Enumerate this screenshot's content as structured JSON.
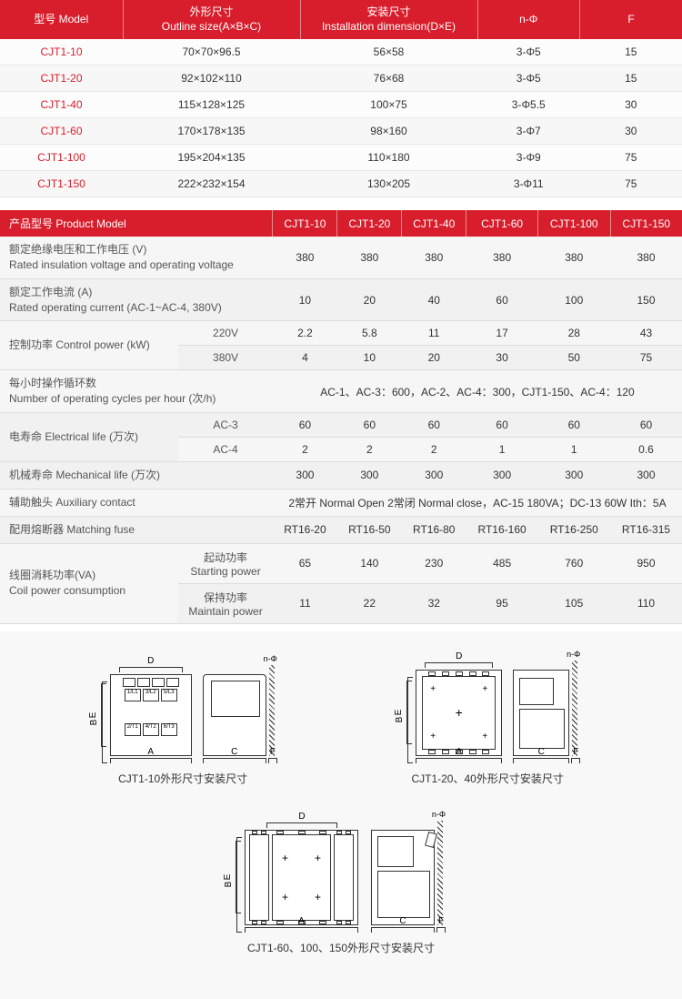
{
  "colors": {
    "header_bg": "#d81e2c",
    "header_text": "#ffffff",
    "row_bg": "#f7f7f7",
    "model_text": "#d81e2c",
    "border": "#e8e8e8"
  },
  "table1": {
    "headers": [
      {
        "cn": "型号",
        "en": "Model"
      },
      {
        "cn": "外形尺寸",
        "en": "Outline size(A×B×C)"
      },
      {
        "cn": "安装尺寸",
        "en": "Installation dimension(D×E)"
      },
      {
        "cn": "n-Φ",
        "en": ""
      },
      {
        "cn": "F",
        "en": ""
      }
    ],
    "rows": [
      [
        "CJT1-10",
        "70×70×96.5",
        "56×58",
        "3-Φ5",
        "15"
      ],
      [
        "CJT1-20",
        "92×102×110",
        "76×68",
        "3-Φ5",
        "15"
      ],
      [
        "CJT1-40",
        "115×128×125",
        "100×75",
        "3-Φ5.5",
        "30"
      ],
      [
        "CJT1-60",
        "170×178×135",
        "98×160",
        "3-Φ7",
        "30"
      ],
      [
        "CJT1-100",
        "195×204×135",
        "110×180",
        "3-Φ9",
        "75"
      ],
      [
        "CJT1-150",
        "222×232×154",
        "130×205",
        "3-Φ11",
        "75"
      ]
    ],
    "col_widths": [
      "18%",
      "26%",
      "26%",
      "15%",
      "15%"
    ]
  },
  "table2": {
    "header_label": "产品型号 Product Model",
    "models": [
      "CJT1-10",
      "CJT1-20",
      "CJT1-40",
      "CJT1-60",
      "CJT1-100",
      "CJT1-150"
    ],
    "rows": [
      {
        "label_cn": "额定绝缘电压和工作电压 (V)",
        "label_en": "Rated insulation voltage and operating voltage",
        "sub": "",
        "vals": [
          "380",
          "380",
          "380",
          "380",
          "380",
          "380"
        ],
        "rowspan": 1
      },
      {
        "label_cn": "额定工作电流 (A)",
        "label_en": "Rated operating current (AC-1~AC-4, 380V)",
        "sub": "",
        "vals": [
          "10",
          "20",
          "40",
          "60",
          "100",
          "150"
        ],
        "rowspan": 1
      },
      {
        "label_cn": "控制功率 Control power (kW)",
        "label_en": "",
        "sub": "220V",
        "vals": [
          "2.2",
          "5.8",
          "11",
          "17",
          "28",
          "43"
        ],
        "rowspan": 2
      },
      {
        "sub": "380V",
        "vals": [
          "4",
          "10",
          "20",
          "30",
          "50",
          "75"
        ]
      },
      {
        "label_cn": "每小时操作循环数",
        "label_en": "Number of operating cycles per hour (次/h)",
        "sub": "",
        "merged": "AC-1、AC-3：600，AC-2、AC-4：300，CJT1-150、AC-4：120",
        "rowspan": 1
      },
      {
        "label_cn": "电寿命 Electrical life (万次)",
        "label_en": "",
        "sub": "AC-3",
        "vals": [
          "60",
          "60",
          "60",
          "60",
          "60",
          "60"
        ],
        "rowspan": 2
      },
      {
        "sub": "AC-4",
        "vals": [
          "2",
          "2",
          "2",
          "1",
          "1",
          "0.6"
        ]
      },
      {
        "label_cn": "机械寿命 Mechanical life (万次)",
        "label_en": "",
        "sub": "",
        "vals": [
          "300",
          "300",
          "300",
          "300",
          "300",
          "300"
        ],
        "rowspan": 1
      },
      {
        "label_cn": "辅助触头 Auxiliary contact",
        "label_en": "",
        "sub": "",
        "merged": "2常开 Normal Open  2常闭 Normal close，AC-15  180VA；DC-13  60W  Ith：5A",
        "rowspan": 1
      },
      {
        "label_cn": "配用熔断器 Matching fuse",
        "label_en": "",
        "sub": "",
        "vals": [
          "RT16-20",
          "RT16-50",
          "RT16-80",
          "RT16-160",
          "RT16-250",
          "RT16-315"
        ],
        "rowspan": 1
      },
      {
        "label_cn": "线圈消耗功率(VA)",
        "label_en": "Coil power consumption",
        "sub_cn": "起动功率",
        "sub_en": "Starting power",
        "vals": [
          "65",
          "140",
          "230",
          "485",
          "760",
          "950"
        ],
        "rowspan": 2
      },
      {
        "sub_cn": "保持功率",
        "sub_en": "Maintain power",
        "vals": [
          "11",
          "22",
          "32",
          "95",
          "105",
          "110"
        ]
      }
    ],
    "label_col_width": "27%",
    "sub_col_width": "13%",
    "val_col_width": "10%"
  },
  "diagrams": {
    "captions": [
      "CJT1-10外形尺寸安装尺寸",
      "CJT1-20、40外形尺寸安装尺寸",
      "CJT1-60、100、150外形尺寸安装尺寸"
    ],
    "dim_labels": [
      "A",
      "B",
      "C",
      "D",
      "E",
      "F",
      "n-Φ"
    ]
  }
}
